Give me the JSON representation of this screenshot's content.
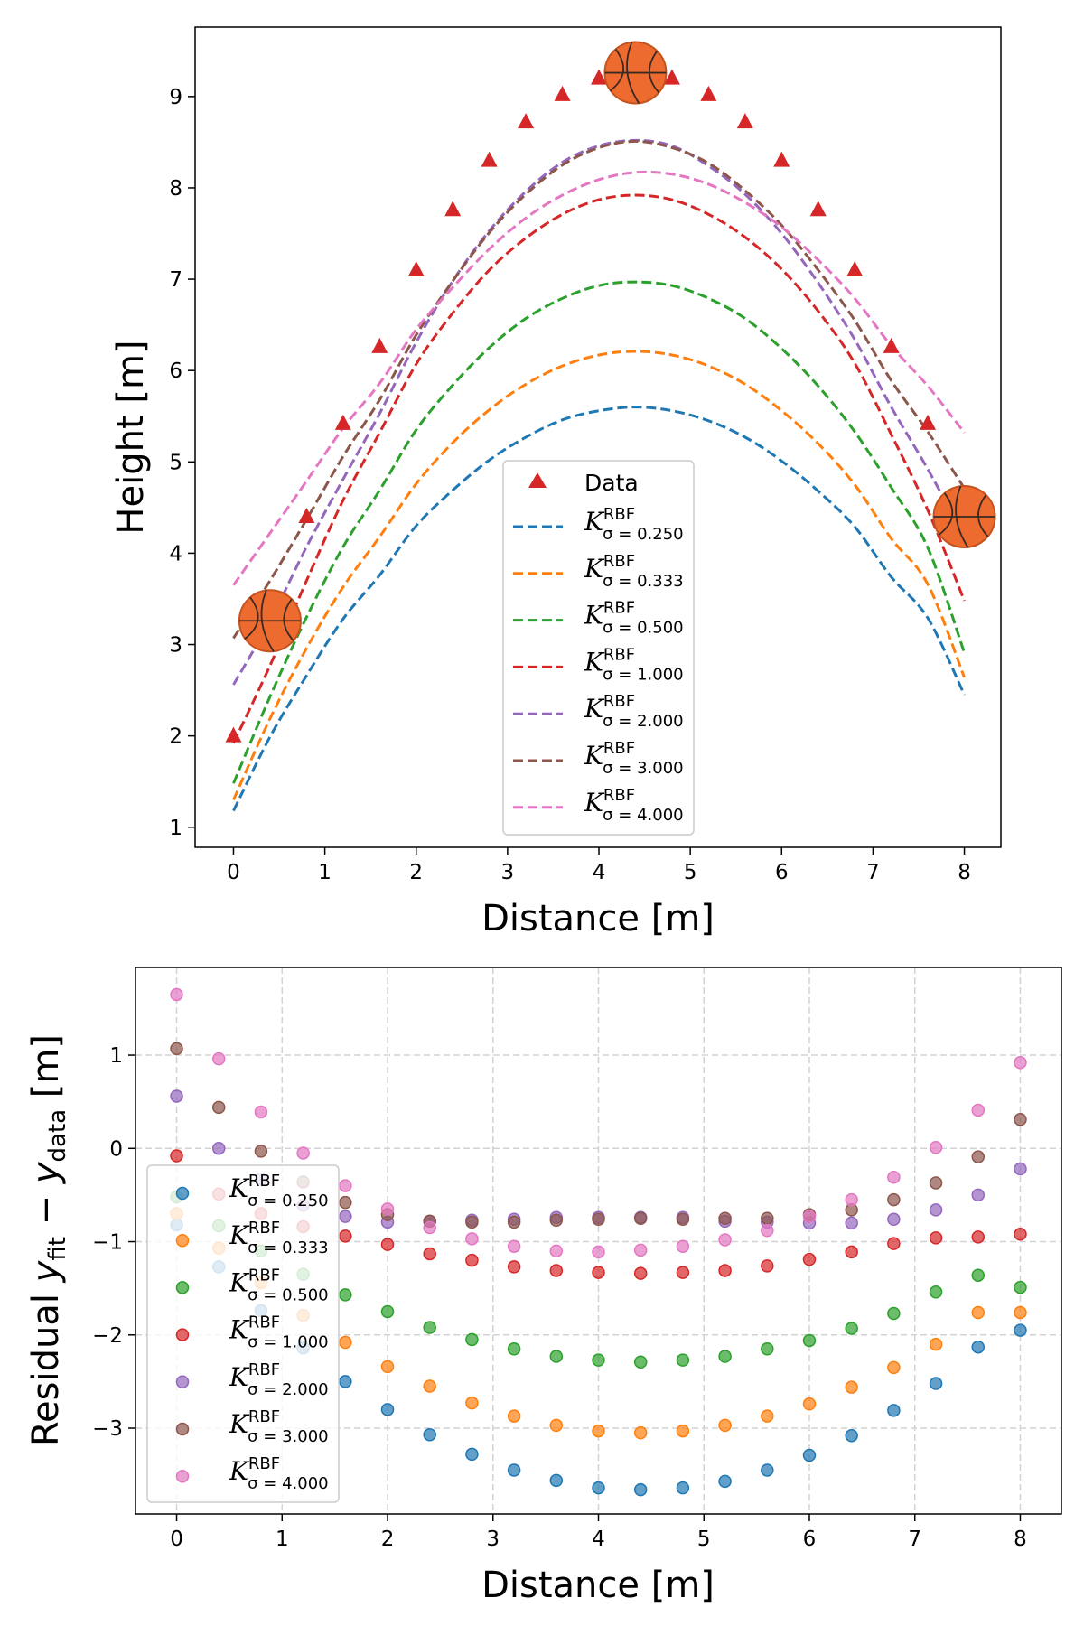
{
  "chart_data": [
    {
      "type": "line",
      "xlabel": "Distance [m]",
      "ylabel": "Height [m]",
      "xlim": [
        -0.42,
        8.4
      ],
      "ylim": [
        0.78,
        9.76
      ],
      "xticks": [
        "0",
        "1",
        "2",
        "3",
        "4",
        "5",
        "6",
        "7",
        "8"
      ],
      "yticks": [
        "1",
        "2",
        "3",
        "4",
        "5",
        "6",
        "7",
        "8",
        "9"
      ],
      "grid": false,
      "legend_position": "lower-center",
      "x": [
        0,
        0.4,
        0.8,
        1.2,
        1.6,
        2.0,
        2.4,
        2.8,
        3.2,
        3.6,
        4.0,
        4.4,
        4.8,
        5.2,
        5.6,
        6.0,
        6.4,
        6.8,
        7.2,
        7.6,
        8.0
      ],
      "data_series": {
        "name": "Data",
        "marker": "triangle",
        "color": "#d62728",
        "values": [
          2.0,
          3.26,
          4.4,
          5.42,
          6.26,
          7.1,
          7.76,
          8.3,
          8.72,
          9.02,
          9.2,
          9.26,
          9.2,
          9.02,
          8.72,
          8.3,
          7.76,
          7.1,
          6.26,
          5.42,
          4.4
        ]
      },
      "markers": {
        "basketball_icon_points": [
          [
            0.4,
            3.26
          ],
          [
            4.4,
            9.26
          ],
          [
            8.0,
            4.4
          ]
        ]
      },
      "legend_key": {
        "symbol": "K",
        "superscript": "RBF"
      },
      "series": [
        {
          "name": "σ = 0.250",
          "color": "#1f77b4",
          "style": "dashed",
          "values": [
            1.18,
            1.99,
            2.66,
            3.28,
            3.76,
            4.3,
            4.69,
            5.02,
            5.27,
            5.46,
            5.56,
            5.6,
            5.56,
            5.45,
            5.27,
            5.01,
            4.68,
            4.29,
            3.74,
            3.29,
            2.45
          ]
        },
        {
          "name": "σ = 0.333",
          "color": "#ff7f0e",
          "style": "dashed",
          "values": [
            1.3,
            2.19,
            2.96,
            3.63,
            4.18,
            4.76,
            5.21,
            5.57,
            5.85,
            6.05,
            6.17,
            6.21,
            6.17,
            6.05,
            5.85,
            5.56,
            5.2,
            4.75,
            4.16,
            3.66,
            2.64
          ]
        },
        {
          "name": "σ = 0.500",
          "color": "#2ca02c",
          "style": "dashed",
          "values": [
            1.48,
            2.43,
            3.3,
            4.07,
            4.69,
            5.35,
            5.84,
            6.25,
            6.57,
            6.79,
            6.93,
            6.97,
            6.93,
            6.79,
            6.57,
            6.24,
            5.83,
            5.33,
            4.72,
            4.06,
            2.91
          ]
        },
        {
          "name": "σ = 1.000",
          "color": "#d62728",
          "style": "dashed",
          "values": [
            1.92,
            2.77,
            3.7,
            4.58,
            5.32,
            6.07,
            6.63,
            7.1,
            7.45,
            7.71,
            7.87,
            7.92,
            7.87,
            7.71,
            7.46,
            7.11,
            6.65,
            6.08,
            5.3,
            4.47,
            3.48
          ]
        },
        {
          "name": "σ = 2.000",
          "color": "#9467bd",
          "style": "dashed",
          "values": [
            2.56,
            3.26,
            4.07,
            4.81,
            5.53,
            6.31,
            6.98,
            7.53,
            7.96,
            8.28,
            8.46,
            8.52,
            8.46,
            8.24,
            7.93,
            7.5,
            6.96,
            6.34,
            5.6,
            4.92,
            4.18
          ]
        },
        {
          "name": "σ = 3.000",
          "color": "#8c564b",
          "style": "dashed",
          "values": [
            3.07,
            3.7,
            4.37,
            5.06,
            5.68,
            6.39,
            6.98,
            7.51,
            7.93,
            8.25,
            8.44,
            8.51,
            8.44,
            8.27,
            7.97,
            7.59,
            7.1,
            6.55,
            5.89,
            5.33,
            4.71
          ]
        },
        {
          "name": "σ = 4.000",
          "color": "#e377c2",
          "style": "dashed",
          "values": [
            3.65,
            4.22,
            4.79,
            5.37,
            5.86,
            6.45,
            6.91,
            7.33,
            7.67,
            7.92,
            8.09,
            8.17,
            8.15,
            8.04,
            7.84,
            7.57,
            7.21,
            6.79,
            6.27,
            5.83,
            5.32
          ]
        }
      ]
    },
    {
      "type": "scatter",
      "xlabel": "Distance [m]",
      "ylabel": {
        "prefix": "Residual ",
        "y1": "y",
        "sub1": "fit",
        "minus": " − ",
        "y2": "y",
        "sub2": "data",
        "suffix": " [m]"
      },
      "xlim": [
        -0.39,
        8.39
      ],
      "ylim": [
        -3.92,
        1.94
      ],
      "xticks": [
        "0",
        "1",
        "2",
        "3",
        "4",
        "5",
        "6",
        "7",
        "8"
      ],
      "yticks": [
        {
          "v": 1,
          "label": "1"
        },
        {
          "v": 0,
          "label": "0"
        },
        {
          "v": -1,
          "label": "−1"
        },
        {
          "v": -2,
          "label": "−2"
        },
        {
          "v": -3,
          "label": "−3"
        }
      ],
      "grid": true,
      "legend_position": "center-left",
      "legend_key": {
        "symbol": "K",
        "superscript": "RBF"
      },
      "x": [
        0,
        0.4,
        0.8,
        1.2,
        1.6,
        2.0,
        2.4,
        2.8,
        3.2,
        3.6,
        4.0,
        4.4,
        4.8,
        5.2,
        5.6,
        6.0,
        6.4,
        6.8,
        7.2,
        7.6,
        8.0
      ],
      "series": [
        {
          "name": "σ = 0.250",
          "color": "#1f77b4",
          "values": [
            -0.82,
            -1.27,
            -1.74,
            -2.14,
            -2.5,
            -2.8,
            -3.07,
            -3.28,
            -3.45,
            -3.56,
            -3.64,
            -3.66,
            -3.64,
            -3.57,
            -3.45,
            -3.29,
            -3.08,
            -2.81,
            -2.52,
            -2.13,
            -1.95
          ]
        },
        {
          "name": "σ = 0.333",
          "color": "#ff7f0e",
          "values": [
            -0.7,
            -1.07,
            -1.44,
            -1.79,
            -2.08,
            -2.34,
            -2.55,
            -2.73,
            -2.87,
            -2.97,
            -3.03,
            -3.05,
            -3.03,
            -2.97,
            -2.87,
            -2.74,
            -2.56,
            -2.35,
            -2.1,
            -1.76,
            -1.76
          ]
        },
        {
          "name": "σ = 0.500",
          "color": "#2ca02c",
          "values": [
            -0.52,
            -0.83,
            -1.1,
            -1.35,
            -1.57,
            -1.75,
            -1.92,
            -2.05,
            -2.15,
            -2.23,
            -2.27,
            -2.29,
            -2.27,
            -2.23,
            -2.15,
            -2.06,
            -1.93,
            -1.77,
            -1.54,
            -1.36,
            -1.49
          ]
        },
        {
          "name": "σ = 1.000",
          "color": "#d62728",
          "values": [
            -0.08,
            -0.49,
            -0.7,
            -0.84,
            -0.94,
            -1.03,
            -1.13,
            -1.2,
            -1.27,
            -1.31,
            -1.33,
            -1.34,
            -1.33,
            -1.31,
            -1.26,
            -1.19,
            -1.11,
            -1.02,
            -0.96,
            -0.95,
            -0.92
          ]
        },
        {
          "name": "σ = 2.000",
          "color": "#9467bd",
          "values": [
            0.56,
            0.0,
            -0.33,
            -0.61,
            -0.73,
            -0.79,
            -0.78,
            -0.77,
            -0.76,
            -0.74,
            -0.74,
            -0.74,
            -0.74,
            -0.78,
            -0.79,
            -0.8,
            -0.8,
            -0.76,
            -0.66,
            -0.5,
            -0.22
          ]
        },
        {
          "name": "σ = 3.000",
          "color": "#8c564b",
          "values": [
            1.07,
            0.44,
            -0.03,
            -0.36,
            -0.58,
            -0.71,
            -0.78,
            -0.79,
            -0.79,
            -0.77,
            -0.76,
            -0.75,
            -0.76,
            -0.75,
            -0.75,
            -0.71,
            -0.66,
            -0.55,
            -0.37,
            -0.09,
            0.31
          ]
        },
        {
          "name": "σ = 4.000",
          "color": "#e377c2",
          "values": [
            1.65,
            0.96,
            0.39,
            -0.05,
            -0.4,
            -0.65,
            -0.85,
            -0.97,
            -1.05,
            -1.1,
            -1.11,
            -1.09,
            -1.05,
            -0.98,
            -0.88,
            -0.73,
            -0.55,
            -0.31,
            0.01,
            0.41,
            0.92
          ]
        }
      ]
    }
  ]
}
